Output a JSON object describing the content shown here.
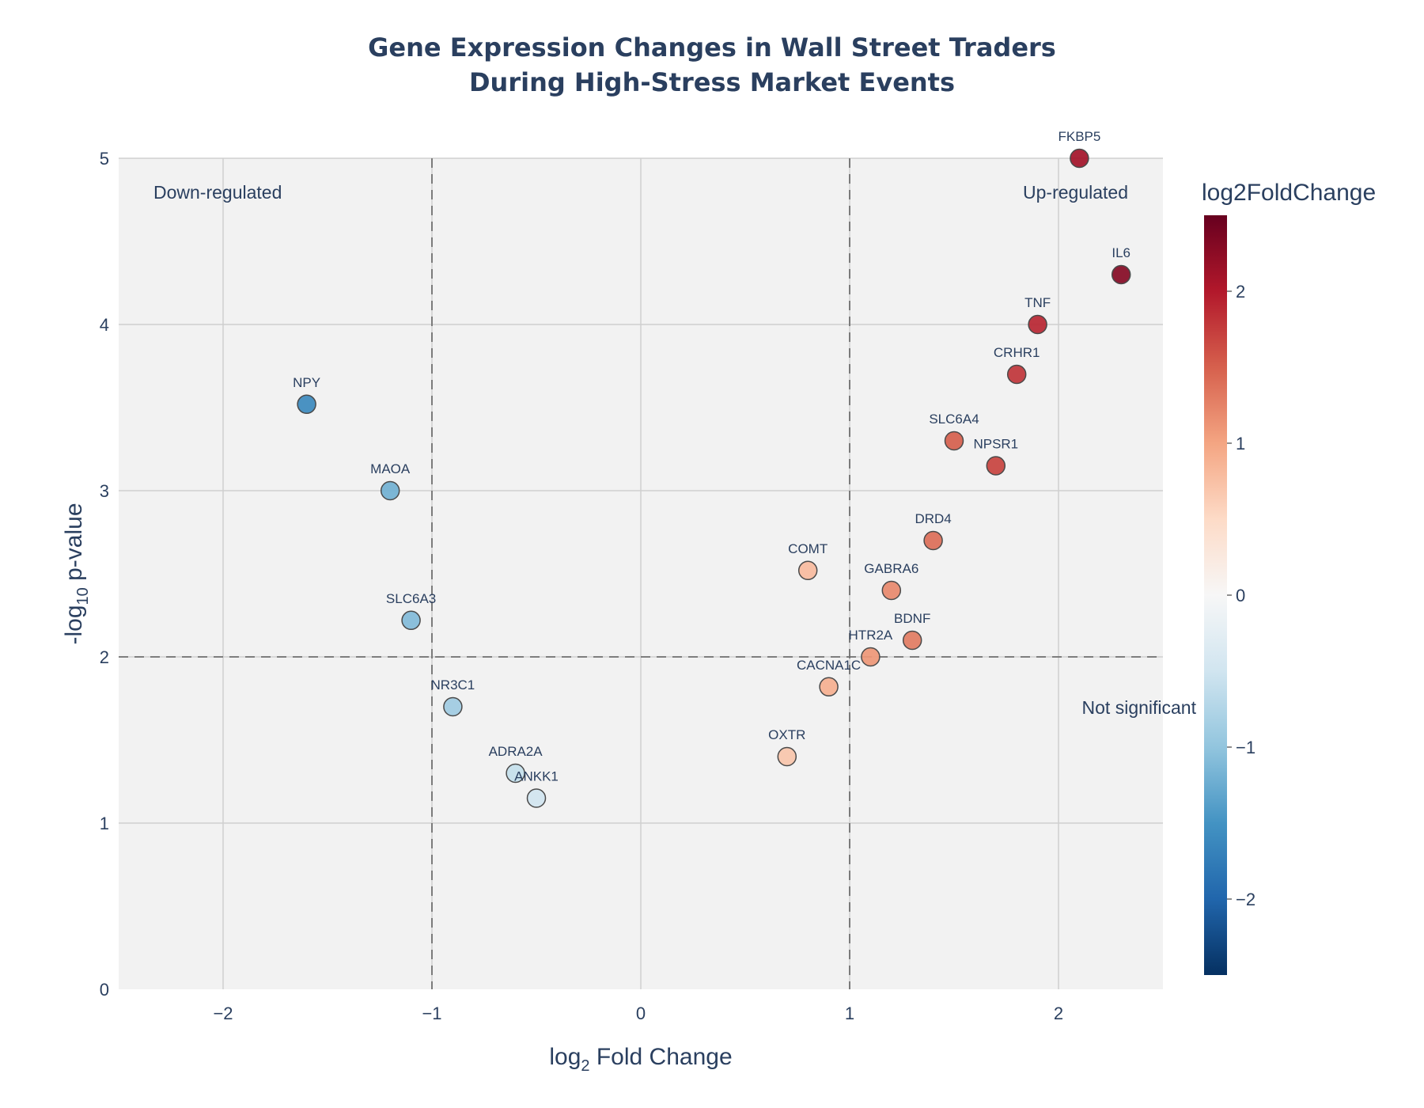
{
  "title_lines": [
    "Gene Expression Changes in Wall Street Traders",
    "During High-Stress Market Events"
  ],
  "chart_data": {
    "type": "scatter",
    "title": "Gene Expression Changes in Wall Street Traders During High-Stress Market Events",
    "xlabel": "log2 Fold Change",
    "ylabel": "-log10 p-value",
    "xlim": [
      -2.5,
      2.5
    ],
    "ylim": [
      0,
      5
    ],
    "x_ticks": [
      -2,
      -1,
      0,
      1,
      2
    ],
    "y_ticks": [
      0,
      1,
      2,
      3,
      4,
      5
    ],
    "x_tick_labels": [
      "−2",
      "−1",
      "0",
      "1",
      "2"
    ],
    "y_tick_labels": [
      "0",
      "1",
      "2",
      "3",
      "4",
      "5"
    ],
    "thresholds": {
      "fold_change": [
        -1,
        1
      ],
      "neg_log10_p": 2
    },
    "colorbar": {
      "title": "log2FoldChange",
      "range": [
        -2.5,
        2.5
      ],
      "ticks": [
        -2,
        -1,
        0,
        1,
        2
      ],
      "tick_labels": [
        "−2",
        "−1",
        "0",
        "1",
        "2"
      ],
      "colorscale": [
        "#053061",
        "#2166ac",
        "#4393c3",
        "#92c5de",
        "#d1e5f0",
        "#f7f7f7",
        "#fddbc7",
        "#f4a582",
        "#d6604d",
        "#b2182b",
        "#67001f"
      ]
    },
    "annotations": [
      "Down-regulated",
      "Up-regulated",
      "Not significant"
    ],
    "points": [
      {
        "gene": "FKBP5",
        "x": 2.1,
        "y": 5.0
      },
      {
        "gene": "IL6",
        "x": 2.3,
        "y": 4.3
      },
      {
        "gene": "TNF",
        "x": 1.9,
        "y": 4.0
      },
      {
        "gene": "CRHR1",
        "x": 1.8,
        "y": 3.7
      },
      {
        "gene": "SLC6A4",
        "x": 1.5,
        "y": 3.3
      },
      {
        "gene": "NPSR1",
        "x": 1.7,
        "y": 3.15
      },
      {
        "gene": "DRD4",
        "x": 1.4,
        "y": 2.7
      },
      {
        "gene": "COMT",
        "x": 0.8,
        "y": 2.52
      },
      {
        "gene": "GABRA6",
        "x": 1.2,
        "y": 2.4
      },
      {
        "gene": "BDNF",
        "x": 1.3,
        "y": 2.1
      },
      {
        "gene": "HTR2A",
        "x": 1.1,
        "y": 2.0
      },
      {
        "gene": "CACNA1C",
        "x": 0.9,
        "y": 1.82
      },
      {
        "gene": "OXTR",
        "x": 0.7,
        "y": 1.4
      },
      {
        "gene": "NPY",
        "x": -1.6,
        "y": 3.52
      },
      {
        "gene": "MAOA",
        "x": -1.2,
        "y": 3.0
      },
      {
        "gene": "SLC6A3",
        "x": -1.1,
        "y": 2.22
      },
      {
        "gene": "NR3C1",
        "x": -0.9,
        "y": 1.7
      },
      {
        "gene": "ADRA2A",
        "x": -0.6,
        "y": 1.3
      },
      {
        "gene": "ANKK1",
        "x": -0.5,
        "y": 1.15
      }
    ]
  }
}
